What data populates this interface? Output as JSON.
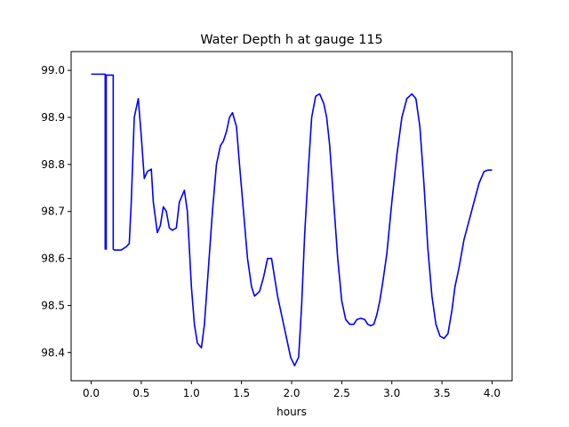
{
  "chart_data": {
    "type": "line",
    "title": "Water Depth h at gauge 115",
    "xlabel": "hours",
    "ylabel": "",
    "xlim": [
      -0.2,
      4.2
    ],
    "ylim": [
      98.34,
      99.04
    ],
    "xticks": [
      0.0,
      0.5,
      1.0,
      1.5,
      2.0,
      2.5,
      3.0,
      3.5,
      4.0
    ],
    "xtick_labels": [
      "0.0",
      "0.5",
      "1.0",
      "1.5",
      "2.0",
      "2.5",
      "3.0",
      "3.5",
      "4.0"
    ],
    "yticks": [
      98.4,
      98.5,
      98.6,
      98.7,
      98.8,
      98.9,
      99.0
    ],
    "ytick_labels": [
      "98.4",
      "98.5",
      "98.6",
      "98.7",
      "98.8",
      "98.9",
      "99.0"
    ],
    "grid": false,
    "legend": "none",
    "series": [
      {
        "color": "#0000ff",
        "x": [
          0.0,
          0.13,
          0.14,
          0.14,
          0.15,
          0.15,
          0.16,
          0.16,
          0.22,
          0.22,
          0.23,
          0.25,
          0.3,
          0.35,
          0.38,
          0.4,
          0.43,
          0.47,
          0.5,
          0.53,
          0.56,
          0.6,
          0.62,
          0.66,
          0.69,
          0.72,
          0.75,
          0.78,
          0.81,
          0.85,
          0.88,
          0.93,
          0.96,
          0.98,
          1.0,
          1.03,
          1.06,
          1.1,
          1.13,
          1.17,
          1.21,
          1.25,
          1.29,
          1.32,
          1.35,
          1.38,
          1.41,
          1.45,
          1.48,
          1.52,
          1.56,
          1.6,
          1.63,
          1.68,
          1.72,
          1.76,
          1.8,
          1.83,
          1.86,
          1.9,
          1.93,
          1.96,
          1.99,
          2.03,
          2.07,
          2.1,
          2.13,
          2.17,
          2.2,
          2.24,
          2.28,
          2.32,
          2.35,
          2.38,
          2.42,
          2.46,
          2.5,
          2.54,
          2.58,
          2.62,
          2.65,
          2.69,
          2.73,
          2.76,
          2.79,
          2.82,
          2.85,
          2.88,
          2.91,
          2.95,
          3.0,
          3.05,
          3.1,
          3.15,
          3.2,
          3.24,
          3.28,
          3.32,
          3.36,
          3.4,
          3.44,
          3.48,
          3.52,
          3.56,
          3.6,
          3.63,
          3.67,
          3.72,
          3.77,
          3.82,
          3.87,
          3.92,
          3.96,
          4.0
        ],
        "y": [
          98.992,
          98.992,
          98.992,
          98.62,
          98.62,
          98.99,
          98.99,
          98.99,
          98.99,
          98.62,
          98.618,
          98.618,
          98.618,
          98.625,
          98.632,
          98.72,
          98.9,
          98.94,
          98.86,
          98.77,
          98.785,
          98.79,
          98.72,
          98.655,
          98.67,
          98.71,
          98.7,
          98.665,
          98.66,
          98.665,
          98.72,
          98.745,
          98.7,
          98.62,
          98.54,
          98.46,
          98.42,
          98.41,
          98.46,
          98.58,
          98.7,
          98.8,
          98.84,
          98.85,
          98.87,
          98.9,
          98.91,
          98.88,
          98.8,
          98.7,
          98.6,
          98.54,
          98.52,
          98.53,
          98.56,
          98.6,
          98.6,
          98.56,
          98.52,
          98.48,
          98.45,
          98.42,
          98.39,
          98.372,
          98.39,
          98.5,
          98.65,
          98.8,
          98.9,
          98.945,
          98.95,
          98.93,
          98.9,
          98.84,
          98.72,
          98.6,
          98.51,
          98.47,
          98.46,
          98.46,
          98.47,
          98.473,
          98.47,
          98.46,
          98.457,
          98.46,
          98.48,
          98.51,
          98.55,
          98.61,
          98.72,
          98.82,
          98.9,
          98.94,
          98.95,
          98.94,
          98.88,
          98.76,
          98.62,
          98.52,
          98.46,
          98.435,
          98.43,
          98.44,
          98.49,
          98.54,
          98.58,
          98.64,
          98.68,
          98.72,
          98.76,
          98.785,
          98.788,
          98.788
        ]
      }
    ]
  }
}
